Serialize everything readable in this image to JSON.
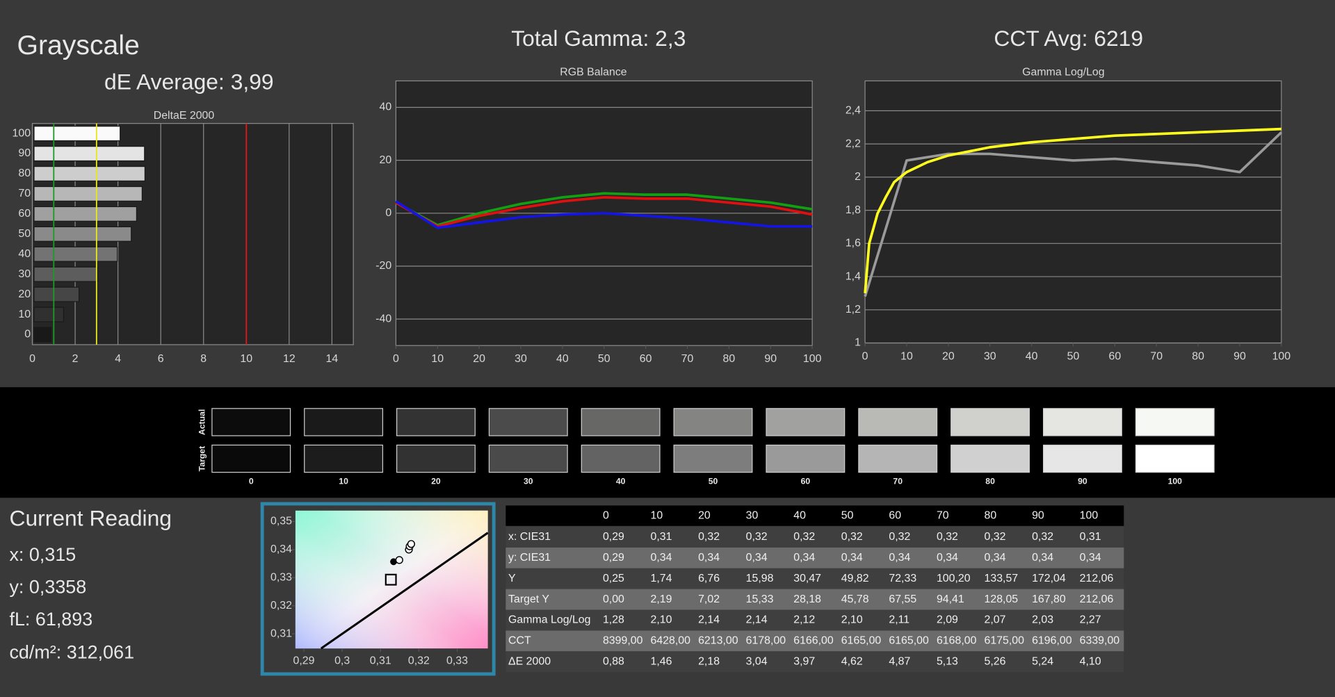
{
  "header": {
    "title": "Grayscale",
    "de_average": "dE Average: 3,99",
    "total_gamma": "Total Gamma: 2,3",
    "cct_avg": "CCT Avg: 6219"
  },
  "reading": {
    "title": "Current Reading",
    "lines": [
      "x: 0,315",
      "y: 0,3358",
      "fL: 61,893",
      "cd/m²: 312,061"
    ]
  },
  "chart_data": [
    {
      "type": "bar",
      "orientation": "horizontal",
      "title": "DeltaE 2000",
      "categories": [
        0,
        10,
        20,
        30,
        40,
        50,
        60,
        70,
        80,
        90,
        100
      ],
      "values": [
        0.88,
        1.46,
        2.18,
        3.04,
        3.97,
        4.62,
        4.87,
        5.13,
        5.26,
        5.24,
        4.1
      ],
      "xlim": [
        0,
        15
      ],
      "xticks": [
        0,
        2,
        4,
        6,
        8,
        10,
        12,
        14
      ],
      "grid": "x",
      "reference_lines": [
        {
          "value": 1,
          "color": "#1e9a2a"
        },
        {
          "value": 3,
          "color": "#e8e81a"
        },
        {
          "value": 10,
          "color": "#e01818"
        }
      ]
    },
    {
      "type": "line",
      "title": "RGB Balance",
      "x": [
        0,
        10,
        20,
        30,
        40,
        50,
        60,
        70,
        80,
        90,
        100
      ],
      "series": [
        {
          "color": "#12a012",
          "values": [
            4,
            -4.5,
            0,
            3.5,
            6,
            7.5,
            7,
            7,
            5.5,
            4,
            1.5
          ]
        },
        {
          "color": "#e01010",
          "values": [
            4,
            -5,
            -1,
            2,
            4.5,
            6,
            5.5,
            5.5,
            4,
            2.5,
            -0.5
          ]
        },
        {
          "color": "#1414e6",
          "values": [
            4.5,
            -5.5,
            -3.5,
            -1.5,
            -0.5,
            0,
            -1,
            -2,
            -3.5,
            -5,
            -5
          ]
        }
      ],
      "xlim": [
        0,
        100
      ],
      "xticks": [
        0,
        10,
        20,
        30,
        40,
        50,
        60,
        70,
        80,
        90,
        100
      ],
      "ylim": [
        -50,
        50
      ],
      "yticks": [
        -40,
        -20,
        0,
        20,
        40
      ],
      "grid": "y"
    },
    {
      "type": "line",
      "title": "Gamma Log/Log",
      "series": [
        {
          "color": "#9a9a9a",
          "x": [
            0,
            10,
            20,
            30,
            40,
            50,
            60,
            70,
            80,
            90,
            100
          ],
          "values": [
            1.28,
            2.1,
            2.14,
            2.14,
            2.12,
            2.1,
            2.11,
            2.09,
            2.07,
            2.03,
            2.27
          ]
        },
        {
          "color": "#ffff1e",
          "x": [
            0,
            1,
            3,
            5,
            7,
            10,
            15,
            20,
            30,
            40,
            50,
            60,
            70,
            80,
            90,
            100
          ],
          "values": [
            1.3,
            1.6,
            1.78,
            1.88,
            1.97,
            2.03,
            2.09,
            2.13,
            2.18,
            2.21,
            2.23,
            2.25,
            2.26,
            2.27,
            2.28,
            2.29
          ]
        }
      ],
      "xlim": [
        0,
        100
      ],
      "xticks": [
        0,
        10,
        20,
        30,
        40,
        50,
        60,
        70,
        80,
        90,
        100
      ],
      "ylim": [
        1,
        2.58
      ],
      "yticks": [
        1,
        {
          "value": 1.2,
          "label": "1,2"
        },
        {
          "value": 1.4,
          "label": "1,4"
        },
        {
          "value": 1.6,
          "label": "1,6"
        },
        {
          "value": 1.8,
          "label": "1,8"
        },
        2,
        {
          "value": 2.2,
          "label": "2,2"
        },
        {
          "value": 2.4,
          "label": "2,4"
        }
      ],
      "grid": "y"
    },
    {
      "type": "scatter",
      "xlim": [
        0.2878,
        0.338
      ],
      "ylim": [
        0.3048,
        0.3539
      ],
      "xticks": [
        {
          "value": 0.29,
          "label": "0,29"
        },
        {
          "value": 0.3,
          "label": "0,3"
        },
        {
          "value": 0.31,
          "label": "0,31"
        },
        {
          "value": 0.32,
          "label": "0,32"
        },
        {
          "value": 0.33,
          "label": "0,33"
        }
      ],
      "yticks": [
        {
          "value": 0.31,
          "label": "0,31"
        },
        {
          "value": 0.32,
          "label": "0,32"
        },
        {
          "value": 0.33,
          "label": "0,33"
        },
        {
          "value": 0.34,
          "label": "0,34"
        },
        {
          "value": 0.35,
          "label": "0,35"
        }
      ],
      "locus": {
        "color": "#000000",
        "x": [
          0.2945,
          0.338
        ],
        "y": [
          0.3048,
          0.346
        ]
      },
      "series": [
        {
          "marker": "filled",
          "color": "#000000",
          "x": [
            0.3134
          ],
          "y": [
            0.3357
          ]
        },
        {
          "marker": "open",
          "color": "#000000",
          "x": [
            0.3149,
            0.3174,
            0.3176,
            0.318
          ],
          "y": [
            0.3363,
            0.34,
            0.3412,
            0.342
          ]
        },
        {
          "marker": "square",
          "color": "#000000",
          "x": [
            0.3127
          ],
          "y": [
            0.3293
          ]
        }
      ]
    }
  ],
  "swatches": {
    "row_labels": [
      "Actual",
      "Target"
    ],
    "labels": [
      "0",
      "10",
      "20",
      "30",
      "40",
      "50",
      "60",
      "70",
      "80",
      "90",
      "100"
    ],
    "actual_colors": [
      "#0c0c0c",
      "#1a1a1a",
      "#333333",
      "#4b4b4b",
      "#676866",
      "#848482",
      "#a1a19f",
      "#b9b9b6",
      "#d0d0cd",
      "#e5e6e2",
      "#f6f8f4"
    ],
    "target_colors": [
      "#0a0a0a",
      "#1c1c1c",
      "#323232",
      "#4a4a4a",
      "#636363",
      "#7d7d7d",
      "#9a9a9a",
      "#b5b5b5",
      "#d0d0d0",
      "#e6e6e6",
      "#ffffff"
    ]
  },
  "table": {
    "header": [
      "0",
      "10",
      "20",
      "30",
      "40",
      "50",
      "60",
      "70",
      "80",
      "90",
      "100"
    ],
    "rows": [
      {
        "label": "x: CIE31",
        "cells": [
          "0,29",
          "0,31",
          "0,32",
          "0,32",
          "0,32",
          "0,32",
          "0,32",
          "0,32",
          "0,32",
          "0,32",
          "0,31"
        ]
      },
      {
        "label": "y: CIE31",
        "cells": [
          "0,29",
          "0,34",
          "0,34",
          "0,34",
          "0,34",
          "0,34",
          "0,34",
          "0,34",
          "0,34",
          "0,34",
          "0,34"
        ]
      },
      {
        "label": "Y",
        "cells": [
          "0,25",
          "1,74",
          "6,76",
          "15,98",
          "30,47",
          "49,82",
          "72,33",
          "100,20",
          "133,57",
          "172,04",
          "212,06"
        ]
      },
      {
        "label": "Target Y",
        "cells": [
          "0,00",
          "2,19",
          "7,02",
          "15,33",
          "28,18",
          "45,78",
          "67,55",
          "94,41",
          "128,05",
          "167,80",
          "212,06"
        ]
      },
      {
        "label": "Gamma Log/Log",
        "cells": [
          "1,28",
          "2,10",
          "2,14",
          "2,14",
          "2,12",
          "2,10",
          "2,11",
          "2,09",
          "2,07",
          "2,03",
          "2,27"
        ]
      },
      {
        "label": "CCT",
        "cells": [
          "8399,00",
          "6428,00",
          "6213,00",
          "6178,00",
          "6166,00",
          "6165,00",
          "6165,00",
          "6168,00",
          "6175,00",
          "6196,00",
          "6339,00"
        ]
      },
      {
        "label": "ΔE 2000",
        "cells": [
          "0,88",
          "1,46",
          "2,18",
          "3,04",
          "3,97",
          "4,62",
          "4,87",
          "5,13",
          "5,26",
          "5,24",
          "4,10"
        ]
      }
    ]
  }
}
